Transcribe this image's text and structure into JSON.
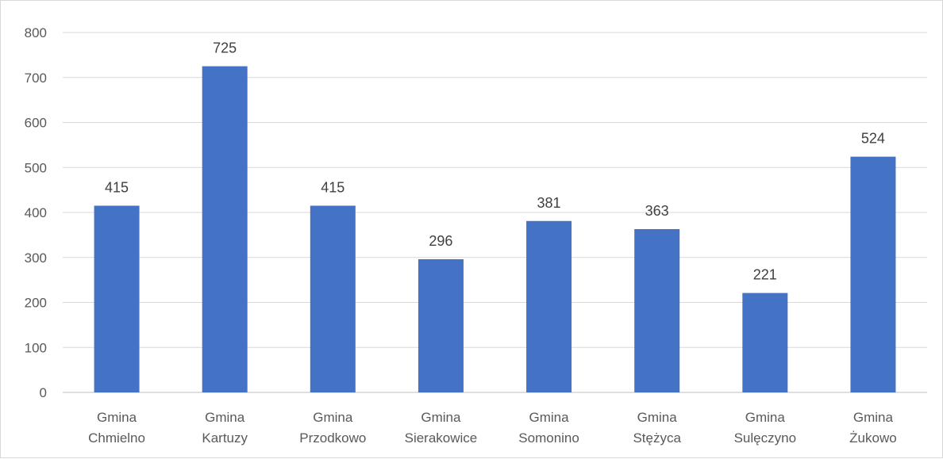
{
  "chart_data": {
    "type": "bar",
    "categories": [
      [
        "Gmina",
        "Chmielno"
      ],
      [
        "Gmina",
        "Kartuzy"
      ],
      [
        "Gmina",
        "Przodkowo"
      ],
      [
        "Gmina",
        "Sierakowice"
      ],
      [
        "Gmina",
        "Somonino"
      ],
      [
        "Gmina",
        "Stężyca"
      ],
      [
        "Gmina",
        "Sulęczyno"
      ],
      [
        "Gmina",
        "Żukowo"
      ]
    ],
    "values": [
      415,
      725,
      415,
      296,
      381,
      363,
      221,
      524
    ],
    "data_labels": [
      "415",
      "725",
      "415",
      "296",
      "381",
      "363",
      "221",
      "524"
    ],
    "y_ticks": [
      "0",
      "100",
      "200",
      "300",
      "400",
      "500",
      "600",
      "700",
      "800"
    ],
    "ylim": [
      0,
      800
    ],
    "grid": true,
    "bar_color": "#4472C4",
    "title": "",
    "xlabel": "",
    "ylabel": ""
  }
}
